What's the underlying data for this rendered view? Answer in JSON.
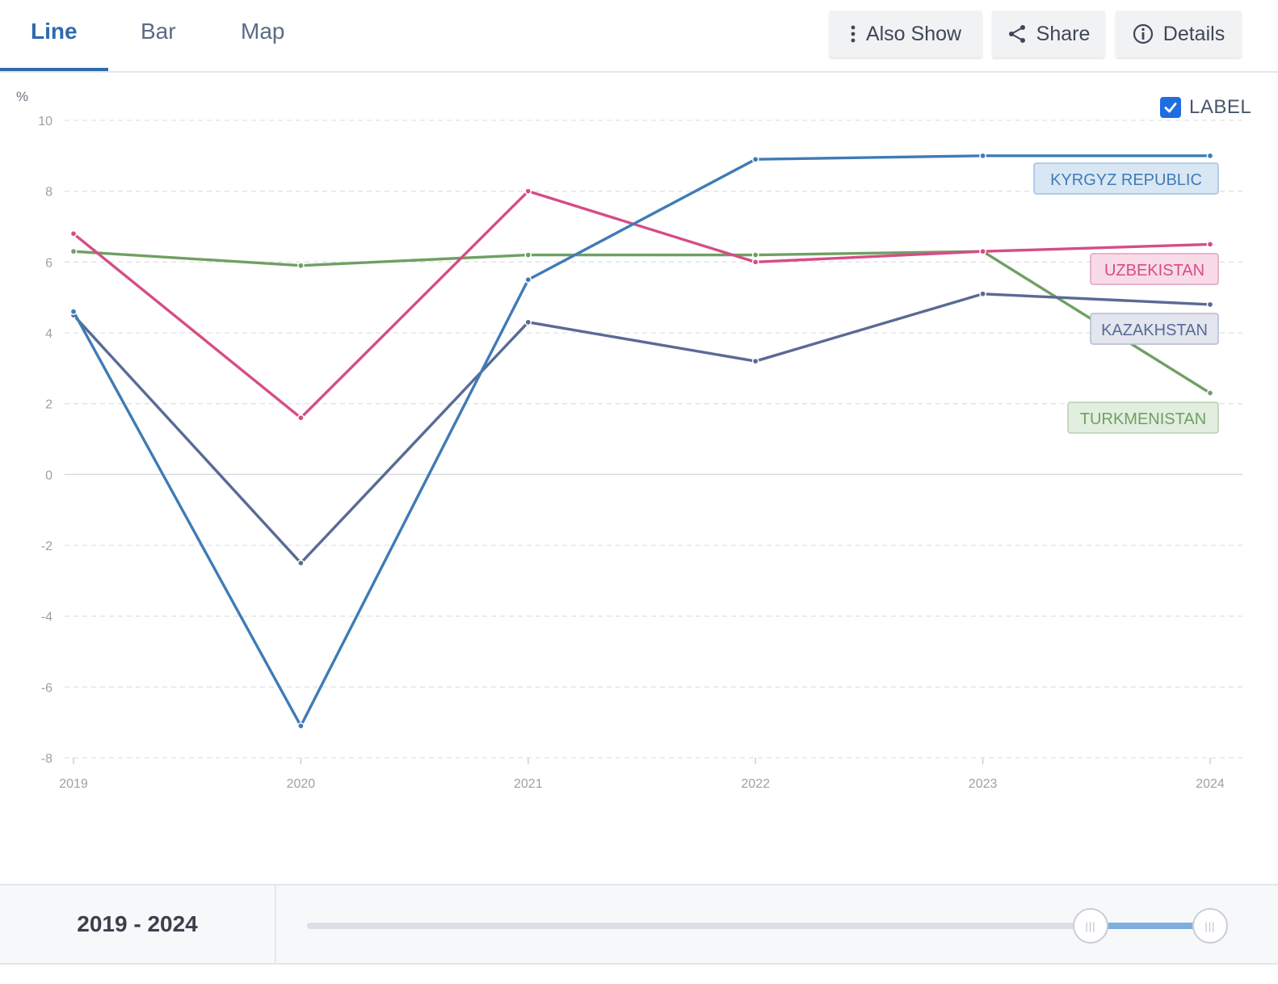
{
  "tabs": [
    {
      "label": "Line",
      "active": true
    },
    {
      "label": "Bar",
      "active": false
    },
    {
      "label": "Map",
      "active": false
    }
  ],
  "toolbar": {
    "also_show_label": "Also Show",
    "share_label": "Share",
    "details_label": "Details"
  },
  "label_toggle": {
    "label": "LABEL",
    "checked": true
  },
  "chart_data": {
    "type": "line",
    "ylabel": "%",
    "ylim": [
      -8,
      10
    ],
    "yticks": [
      "10",
      "8",
      "6",
      "4",
      "2",
      "0",
      "-2",
      "-4",
      "-6",
      "-8"
    ],
    "x": [
      "2019",
      "2020",
      "2021",
      "2022",
      "2023",
      "2024"
    ],
    "grid": true,
    "series": [
      {
        "name": "KYRGYZ REPUBLIC",
        "color": "#3f7bb6",
        "label_bg": "#d9e7f4",
        "label_border": "#9fc1e3",
        "values": [
          4.6,
          -7.1,
          5.5,
          8.9,
          9.0,
          9.0
        ]
      },
      {
        "name": "UZBEKISTAN",
        "color": "#d54d86",
        "label_bg": "#f8dbe7",
        "label_border": "#e3a0be",
        "values": [
          6.8,
          1.6,
          8.0,
          6.0,
          6.3,
          6.5
        ]
      },
      {
        "name": "KAZAKHSTAN",
        "color": "#5a6a95",
        "label_bg": "#e3e5ef",
        "label_border": "#b4bad1",
        "values": [
          4.5,
          -2.5,
          4.3,
          3.2,
          5.1,
          4.8
        ]
      },
      {
        "name": "TURKMENISTAN",
        "color": "#6fa063",
        "label_bg": "#e2eedf",
        "label_border": "#b5d1ad",
        "values": [
          6.3,
          5.9,
          6.2,
          6.2,
          6.3,
          2.3
        ]
      }
    ]
  },
  "range": {
    "start": "2019",
    "end": "2024",
    "separator": "-"
  }
}
